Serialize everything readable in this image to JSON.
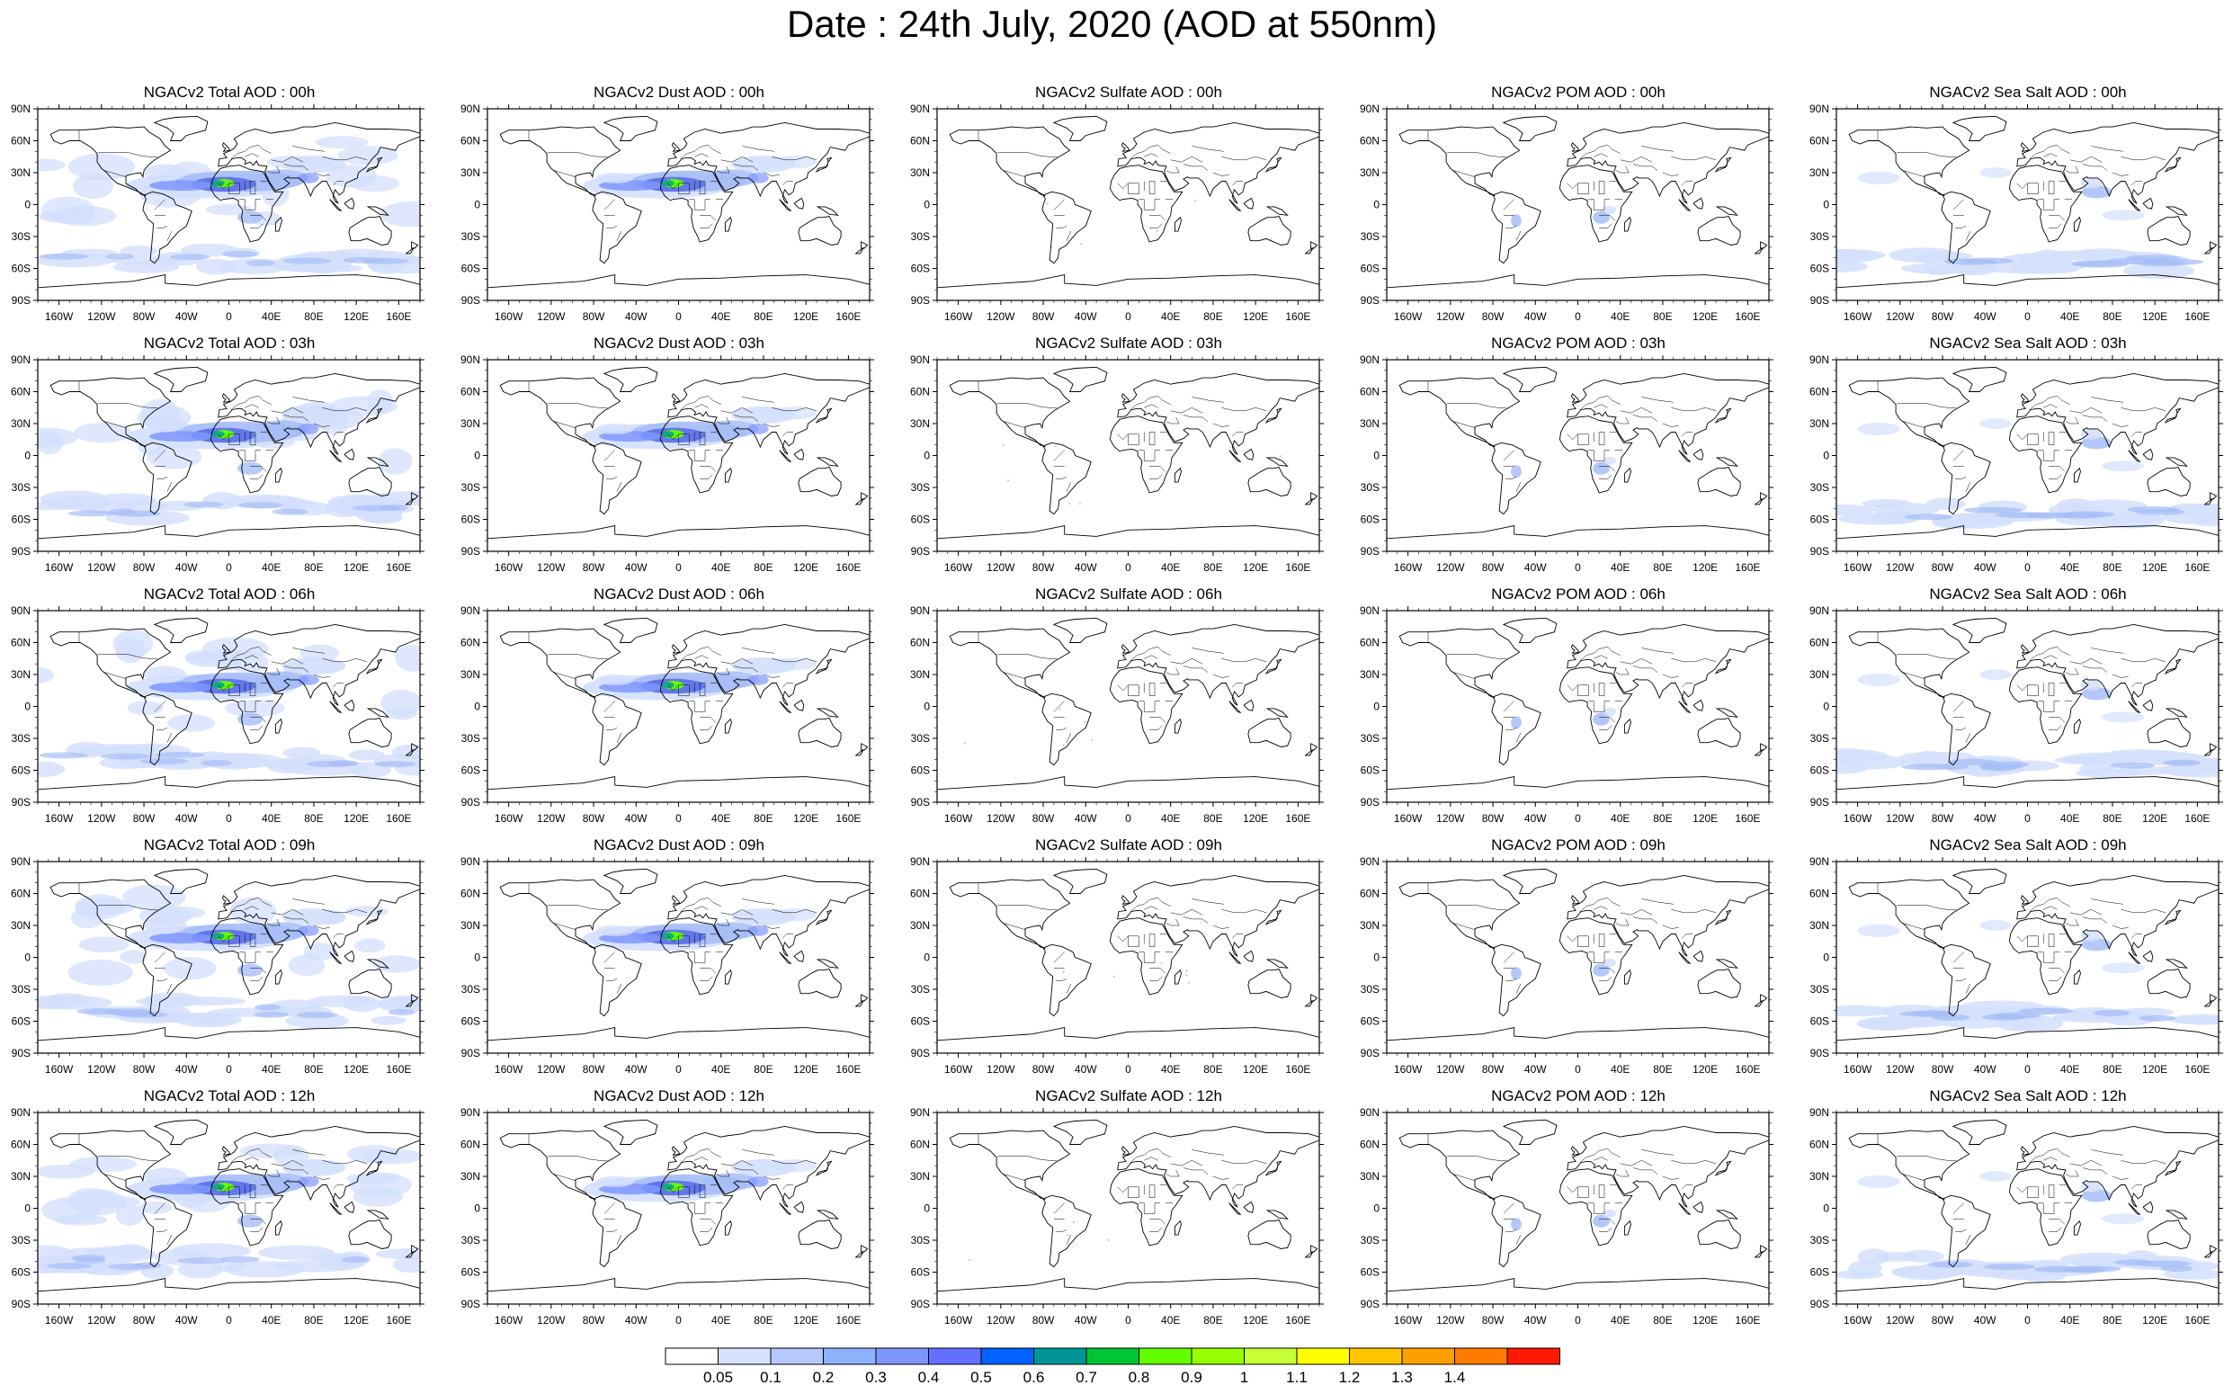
{
  "title": "Date : 24th July, 2020 (AOD at 550nm)",
  "species": [
    {
      "key": "total",
      "label": "Total AOD"
    },
    {
      "key": "dust",
      "label": "Dust AOD"
    },
    {
      "key": "sulfate",
      "label": "Sulfate AOD"
    },
    {
      "key": "pom",
      "label": "POM AOD"
    },
    {
      "key": "seasalt",
      "label": "Sea Salt AOD"
    }
  ],
  "panel_titles": [
    [
      "NGACv2 Total AOD : 00h",
      "NGACv2 Dust AOD : 00h",
      "NGACv2 Sulfate AOD : 00h",
      "NGACv2 POM AOD : 00h",
      "NGACv2 Sea Salt AOD : 00h"
    ],
    [
      "NGACv2 Total AOD : 03h",
      "NGACv2 Dust AOD : 03h",
      "NGACv2 Sulfate AOD : 03h",
      "NGACv2 POM AOD : 03h",
      "NGACv2 Sea Salt AOD : 03h"
    ],
    [
      "NGACv2 Total AOD : 06h",
      "NGACv2 Dust AOD : 06h",
      "NGACv2 Sulfate AOD : 06h",
      "NGACv2 POM AOD : 06h",
      "NGACv2 Sea Salt AOD : 06h"
    ],
    [
      "NGACv2 Total AOD : 09h",
      "NGACv2 Dust AOD : 09h",
      "NGACv2 Sulfate AOD : 09h",
      "NGACv2 POM AOD : 09h",
      "NGACv2 Sea Salt  AOD : 09h"
    ],
    [
      "NGACv2 Total AOD  : 12h",
      "NGACv2 Dust AOD : 12h",
      "NGACv2 Sulfate AOD : 12h",
      "NGACv2 POM  AOD : 12h",
      "NGACv2 Sea Salt AOD : 12h"
    ]
  ],
  "lat_labels": [
    "90N",
    "60N",
    "30N",
    "0",
    "30S",
    "60S",
    "90S"
  ],
  "lon_labels": [
    "160W",
    "120W",
    "80W",
    "40W",
    "0",
    "40E",
    "80E",
    "120E",
    "160E"
  ],
  "lat_values": [
    90,
    60,
    30,
    0,
    -30,
    -60,
    -90
  ],
  "lon_values": [
    -160,
    -120,
    -80,
    -40,
    0,
    40,
    80,
    120,
    160
  ],
  "colorbar": {
    "labels": [
      "0.05",
      "0.1",
      "0.2",
      "0.3",
      "0.4",
      "0.5",
      "0.6",
      "0.7",
      "0.8",
      "0.9",
      "1",
      "1.1",
      "1.2",
      "1.3",
      "1.4"
    ],
    "colors": [
      "#ffffff",
      "#d6e2ff",
      "#b5c9ff",
      "#8eb2ff",
      "#7f96ff",
      "#6370ff",
      "#0063ff",
      "#009696",
      "#00c633",
      "#63ff00",
      "#96ff00",
      "#c6ff33",
      "#ffff00",
      "#ffc600",
      "#ffa000",
      "#ff7c00",
      "#ff1900"
    ]
  },
  "colors": {
    "land_line": "#000000",
    "aod_light": "#c9d8fb",
    "aod_mid": "#8fabf5",
    "aod_dark": "#5a6fe8",
    "dust_core": "#63ff00"
  }
}
